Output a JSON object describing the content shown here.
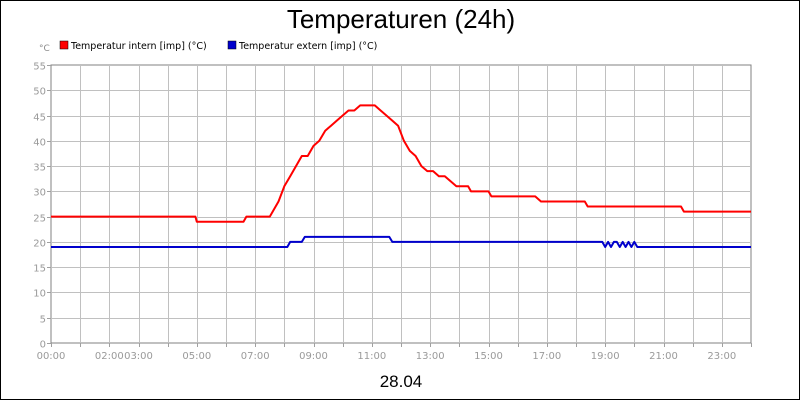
{
  "chart_data": {
    "type": "line",
    "title": "Temperaturen (24h)",
    "ylabel": "°C",
    "xlabel": "28.04",
    "ylim": [
      0,
      55
    ],
    "yticks": [
      0,
      5,
      10,
      15,
      20,
      25,
      30,
      35,
      40,
      45,
      50,
      55
    ],
    "xlim": [
      0,
      24
    ],
    "xticks": [
      {
        "x": 0,
        "label": "00:00"
      },
      {
        "x": 2,
        "label": "02:00"
      },
      {
        "x": 3,
        "label": "03:00"
      },
      {
        "x": 5,
        "label": "05:00"
      },
      {
        "x": 7,
        "label": "07:00"
      },
      {
        "x": 9,
        "label": "09:00"
      },
      {
        "x": 11,
        "label": "11:00"
      },
      {
        "x": 13,
        "label": "13:00"
      },
      {
        "x": 15,
        "label": "15:00"
      },
      {
        "x": 17,
        "label": "17:00"
      },
      {
        "x": 19,
        "label": "19:00"
      },
      {
        "x": 21,
        "label": "21:00"
      },
      {
        "x": 23,
        "label": "23:00"
      }
    ],
    "grid": true,
    "legend_position": "top-left",
    "series": [
      {
        "name": "Temperatur intern [imp] (°C)",
        "color": "#ff0000",
        "points": [
          [
            0,
            25
          ],
          [
            4.95,
            25
          ],
          [
            5.0,
            24
          ],
          [
            6.6,
            24
          ],
          [
            6.7,
            25
          ],
          [
            7.5,
            25
          ],
          [
            7.8,
            28
          ],
          [
            8.0,
            31
          ],
          [
            8.2,
            33
          ],
          [
            8.4,
            35
          ],
          [
            8.6,
            37
          ],
          [
            8.8,
            37
          ],
          [
            9.0,
            39
          ],
          [
            9.2,
            40
          ],
          [
            9.4,
            42
          ],
          [
            9.6,
            43
          ],
          [
            9.8,
            44
          ],
          [
            10.0,
            45
          ],
          [
            10.2,
            46
          ],
          [
            10.4,
            46
          ],
          [
            10.6,
            47
          ],
          [
            11.1,
            47
          ],
          [
            11.3,
            46
          ],
          [
            11.5,
            45
          ],
          [
            11.7,
            44
          ],
          [
            11.9,
            43
          ],
          [
            12.1,
            40
          ],
          [
            12.3,
            38
          ],
          [
            12.5,
            37
          ],
          [
            12.7,
            35
          ],
          [
            12.9,
            34
          ],
          [
            13.1,
            34
          ],
          [
            13.3,
            33
          ],
          [
            13.5,
            33
          ],
          [
            13.7,
            32
          ],
          [
            13.9,
            31
          ],
          [
            14.3,
            31
          ],
          [
            14.4,
            30
          ],
          [
            15.0,
            30
          ],
          [
            15.1,
            29
          ],
          [
            16.6,
            29
          ],
          [
            16.8,
            28
          ],
          [
            18.3,
            28
          ],
          [
            18.4,
            27
          ],
          [
            21.6,
            27
          ],
          [
            21.7,
            26
          ],
          [
            24,
            26
          ]
        ]
      },
      {
        "name": "Temperatur extern [imp] (°C)",
        "color": "#0000cc",
        "points": [
          [
            0,
            19
          ],
          [
            8.1,
            19
          ],
          [
            8.2,
            20
          ],
          [
            8.6,
            20
          ],
          [
            8.7,
            21
          ],
          [
            11.6,
            21
          ],
          [
            11.7,
            20
          ],
          [
            18.9,
            20
          ],
          [
            19.0,
            19
          ],
          [
            19.1,
            20
          ],
          [
            19.2,
            19
          ],
          [
            19.3,
            20
          ],
          [
            19.4,
            20
          ],
          [
            19.5,
            19
          ],
          [
            19.6,
            20
          ],
          [
            19.7,
            19
          ],
          [
            19.8,
            20
          ],
          [
            19.9,
            19
          ],
          [
            20.0,
            20
          ],
          [
            20.1,
            19
          ],
          [
            24,
            19
          ]
        ]
      }
    ]
  }
}
